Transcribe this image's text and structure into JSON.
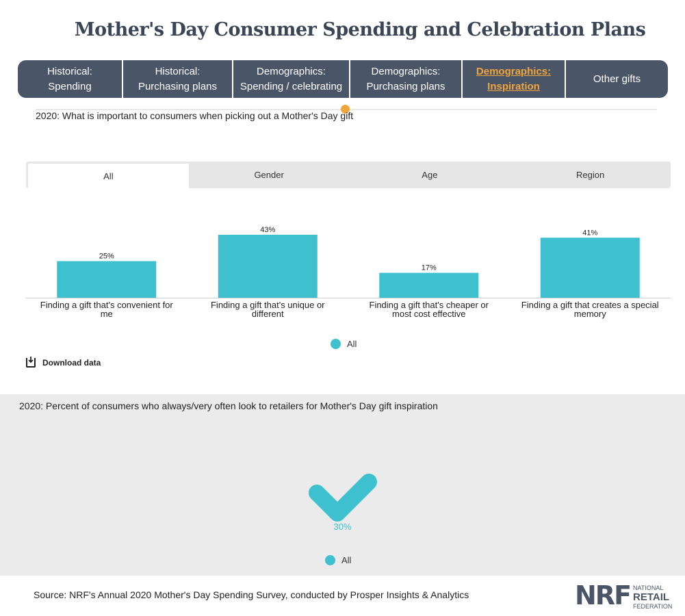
{
  "title": "Mother's Day Consumer Spending and Celebration Plans",
  "topnav": [
    {
      "line1": "Historical:",
      "line2": "Spending",
      "active": false
    },
    {
      "line1": "Historical:",
      "line2": "Purchasing plans",
      "active": false
    },
    {
      "line1": "Demographics:",
      "line2": "Spending / celebrating",
      "active": false
    },
    {
      "line1": "Demographics:",
      "line2": "Purchasing plans",
      "active": false
    },
    {
      "line1": "Demographics:",
      "line2": "Inspiration",
      "active": true
    },
    {
      "line1": "Other gifts",
      "line2": "",
      "active": false
    }
  ],
  "section1": {
    "title": "2020: What is important to consumers when picking out a Mother's Day gift",
    "subtabs": [
      "All",
      "Gender",
      "Age",
      "Region"
    ],
    "active_subtab": "All",
    "legend": "All",
    "download": "Download data"
  },
  "chart_data": {
    "type": "bar",
    "categories": [
      [
        "Finding a gift that's convenient for",
        "me"
      ],
      [
        "Finding a gift that's unique or",
        "different"
      ],
      [
        "Finding a gift that's cheaper or",
        "most cost effective"
      ],
      [
        "Finding a gift that creates a special",
        "memory"
      ]
    ],
    "series": [
      {
        "name": "All",
        "values": [
          25,
          43,
          17,
          41
        ]
      }
    ],
    "value_labels": [
      "25%",
      "43%",
      "17%",
      "41%"
    ],
    "title": "",
    "xlabel": "",
    "ylabel": "",
    "ylim": [
      0,
      43
    ],
    "grid": false,
    "legend": "bottom-center",
    "color": "#3ec0cf"
  },
  "section2": {
    "title": "2020: Percent of consumers who always/very often look to retailers for Mother's Day gift inspiration",
    "value": "30%",
    "legend": "All"
  },
  "footer": {
    "source": "Source: NRF's Annual 2020 Mother's Day Spending Survey, conducted by Prosper Insights & Analytics",
    "logo_big": "NRF",
    "logo_lines": [
      "NATIONAL",
      "RETAIL",
      "FEDERATION"
    ]
  },
  "colors": {
    "accent": "#f0a63a",
    "bar": "#3ec0cf",
    "nav": "#4b5568"
  }
}
